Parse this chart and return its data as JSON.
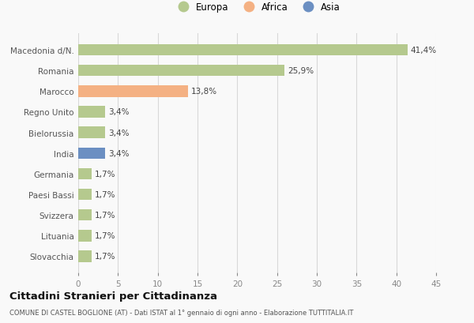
{
  "countries": [
    "Macedonia d/N.",
    "Romania",
    "Marocco",
    "Regno Unito",
    "Bielorussia",
    "India",
    "Germania",
    "Paesi Bassi",
    "Svizzera",
    "Lituania",
    "Slovacchia"
  ],
  "values": [
    41.4,
    25.9,
    13.8,
    3.4,
    3.4,
    3.4,
    1.7,
    1.7,
    1.7,
    1.7,
    1.7
  ],
  "labels": [
    "41,4%",
    "25,9%",
    "13,8%",
    "3,4%",
    "3,4%",
    "3,4%",
    "1,7%",
    "1,7%",
    "1,7%",
    "1,7%",
    "1,7%"
  ],
  "colors": [
    "#b5c98e",
    "#b5c98e",
    "#f4b183",
    "#b5c98e",
    "#b5c98e",
    "#6b8fc2",
    "#b5c98e",
    "#b5c98e",
    "#b5c98e",
    "#b5c98e",
    "#b5c98e"
  ],
  "legend_labels": [
    "Europa",
    "Africa",
    "Asia"
  ],
  "legend_colors": [
    "#b5c98e",
    "#f4b183",
    "#6b8fc2"
  ],
  "xlim": [
    0,
    45
  ],
  "xticks": [
    0,
    5,
    10,
    15,
    20,
    25,
    30,
    35,
    40,
    45
  ],
  "title": "Cittadini Stranieri per Cittadinanza",
  "subtitle": "COMUNE DI CASTEL BOGLIONE (AT) - Dati ISTAT al 1° gennaio di ogni anno - Elaborazione TUTTITALIA.IT",
  "bg_color": "#f9f9f9",
  "grid_color": "#d8d8d8"
}
